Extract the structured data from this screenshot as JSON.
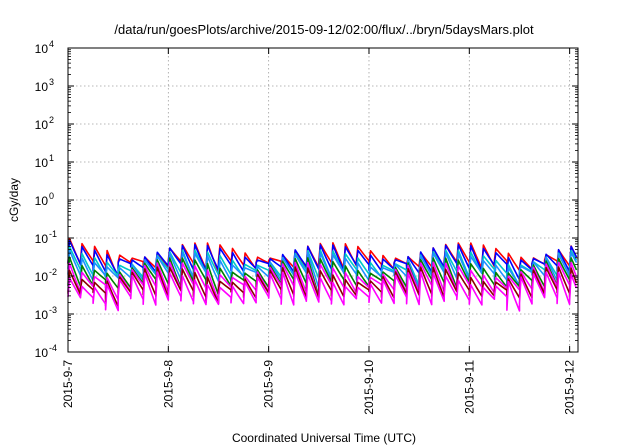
{
  "chart_data": {
    "type": "line",
    "title": "/data/run/goesPlots/archive/2015-09-12/02:00/flux/../bryn/5daysMars.plot",
    "xlabel": "Coordinated Universal Time (UTC)",
    "ylabel": "cGy/day",
    "scale_y": "log",
    "ylim": [
      0.0001,
      10000
    ],
    "xlim_days": [
      "2015-9-7",
      "2015-9-12 02:00"
    ],
    "x_ticks": [
      "2015-9-7",
      "2015-9-8",
      "2015-9-9",
      "2015-9-10",
      "2015-9-11",
      "2015-9-12"
    ],
    "y_ticks": [
      {
        "base": "10",
        "exp": "-4"
      },
      {
        "base": "10",
        "exp": "-3"
      },
      {
        "base": "10",
        "exp": "-2"
      },
      {
        "base": "10",
        "exp": "-1"
      },
      {
        "base": "10",
        "exp": "0"
      },
      {
        "base": "10",
        "exp": "1"
      },
      {
        "base": "10",
        "exp": "2"
      },
      {
        "base": "10",
        "exp": "3"
      },
      {
        "base": "10",
        "exp": "4"
      }
    ],
    "grid": true,
    "legend": "none",
    "pattern": {
      "period_hours": 3,
      "shape": "sawtooth: sharp rise then decay each period"
    },
    "series": [
      {
        "color": "#ff0000",
        "peak": 0.065,
        "trough": 0.02
      },
      {
        "color": "#0000ff",
        "peak": 0.058,
        "trough": 0.017
      },
      {
        "color": "#00c8c8",
        "peak": 0.042,
        "trough": 0.012
      },
      {
        "color": "#1e90ff",
        "peak": 0.036,
        "trough": 0.01
      },
      {
        "color": "#008000",
        "peak": 0.026,
        "trough": 0.0065
      },
      {
        "color": "#ff00ff",
        "peak": 0.02,
        "trough": 0.0048
      },
      {
        "color": "#8b0000",
        "peak": 0.015,
        "trough": 0.0035
      },
      {
        "color": "#ff00ff",
        "peak": 0.011,
        "trough": 0.0023
      }
    ]
  }
}
